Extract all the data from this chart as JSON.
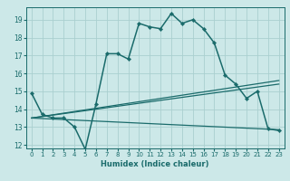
{
  "xlabel": "Humidex (Indice chaleur)",
  "bg_color": "#cce8e8",
  "grid_color": "#aacfcf",
  "line_color": "#1a6b6b",
  "xlim": [
    -0.5,
    23.5
  ],
  "ylim": [
    11.8,
    19.7
  ],
  "yticks": [
    12,
    13,
    14,
    15,
    16,
    17,
    18,
    19
  ],
  "xticks": [
    0,
    1,
    2,
    3,
    4,
    5,
    6,
    7,
    8,
    9,
    10,
    11,
    12,
    13,
    14,
    15,
    16,
    17,
    18,
    19,
    20,
    21,
    22,
    23
  ],
  "line1_x": [
    0,
    1,
    2,
    3,
    4,
    5,
    6,
    7,
    8,
    9,
    10,
    11,
    12,
    13,
    14,
    15,
    16,
    17,
    18,
    19,
    20,
    21,
    22,
    23
  ],
  "line1_y": [
    14.9,
    13.7,
    13.5,
    13.5,
    13.0,
    11.75,
    14.3,
    17.1,
    17.1,
    16.8,
    18.8,
    18.6,
    18.5,
    19.35,
    18.8,
    19.0,
    18.5,
    17.7,
    15.9,
    15.4,
    14.6,
    15.0,
    12.9,
    12.8
  ],
  "line2_x": [
    0,
    23
  ],
  "line2_y": [
    13.5,
    15.6
  ],
  "line3_x": [
    0,
    23
  ],
  "line3_y": [
    13.5,
    15.4
  ],
  "line4_x": [
    0,
    23
  ],
  "line4_y": [
    13.5,
    12.85
  ]
}
